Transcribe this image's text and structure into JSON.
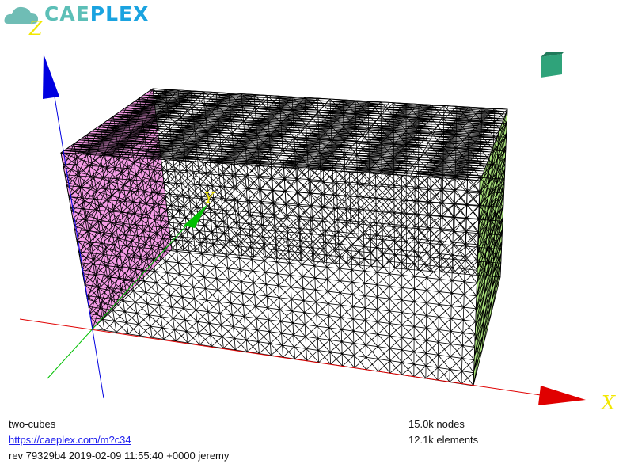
{
  "logo": {
    "part1": "CAE",
    "part2": "PLEX"
  },
  "axes": {
    "x": "X",
    "y": "Y",
    "z": "Z"
  },
  "model": {
    "name": "two-cubes",
    "link": "https://caeplex.com/m?c34",
    "revision": "rev 79329b4 2019-02-09 11:55:40 +0000 jeremy",
    "nodes": "15.0k nodes",
    "elements": "12.1k elements"
  },
  "colors": {
    "left_face": "#f59ce6",
    "right_face": "#a8e07a",
    "x_axis": "#e00000",
    "y_axis": "#00c000",
    "z_axis": "#0000e0",
    "view_cube": "#2fa37a"
  }
}
